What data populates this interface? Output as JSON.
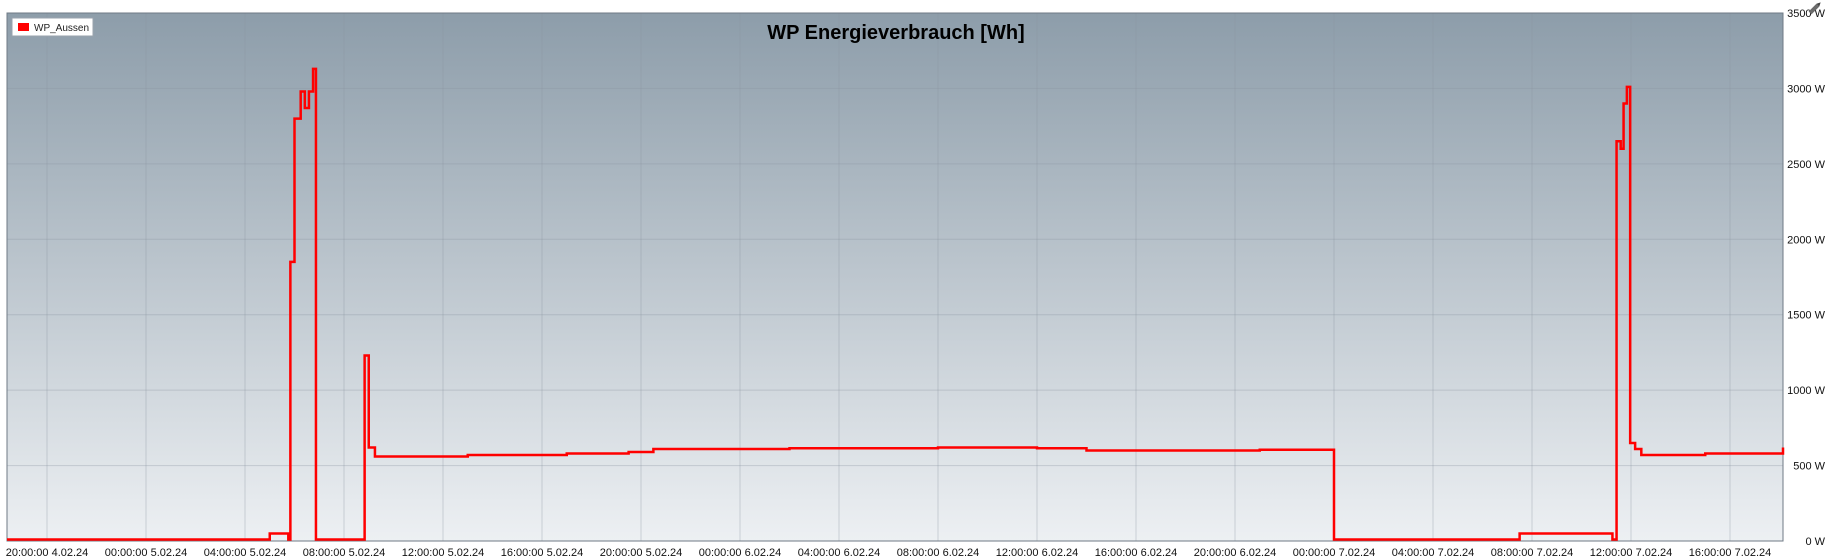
{
  "colors": {
    "series": "#ff0000",
    "background_top": "#8d9daa",
    "background_bottom": "#edf0f3"
  },
  "chart_data": {
    "type": "line",
    "title": "WP Energieverbrauch [Wh]",
    "xlabel": "",
    "ylabel": "",
    "ylim": [
      0,
      3500
    ],
    "grid": true,
    "legend_position": "top-left",
    "icons": [
      "pencil-icon"
    ],
    "x_ticks": [
      "20:00:00 4.02.24",
      "00:00:00 5.02.24",
      "04:00:00 5.02.24",
      "08:00:00 5.02.24",
      "12:00:00 5.02.24",
      "16:00:00 5.02.24",
      "20:00:00 5.02.24",
      "00:00:00 6.02.24",
      "04:00:00 6.02.24",
      "08:00:00 6.02.24",
      "12:00:00 6.02.24",
      "16:00:00 6.02.24",
      "20:00:00 6.02.24",
      "00:00:00 7.02.24",
      "04:00:00 7.02.24",
      "08:00:00 7.02.24",
      "12:00:00 7.02.24",
      "16:00:00 7.02.24"
    ],
    "y_ticks": [
      "0 W",
      "500 W",
      "1000 W",
      "1500 W",
      "2000 W",
      "2500 W",
      "3000 W",
      "3500 W"
    ],
    "y_tick_values": [
      0,
      500,
      1000,
      1500,
      2000,
      2500,
      3000,
      3500
    ],
    "series": [
      {
        "name": "WP_Aussen",
        "color": "#ff0000",
        "step": true,
        "points": [
          [
            "04.02.24 18:30",
            10
          ],
          [
            "05.02.24 05:00",
            50
          ],
          [
            "05.02.24 05:45",
            10
          ],
          [
            "05.02.24 05:50",
            1850
          ],
          [
            "05.02.24 06:00",
            2800
          ],
          [
            "05.02.24 06:15",
            2980
          ],
          [
            "05.02.24 06:25",
            2870
          ],
          [
            "05.02.24 06:35",
            2980
          ],
          [
            "05.02.24 06:45",
            3130
          ],
          [
            "05.02.24 06:52",
            10
          ],
          [
            "05.02.24 08:50",
            1230
          ],
          [
            "05.02.24 09:00",
            620
          ],
          [
            "05.02.24 09:15",
            560
          ],
          [
            "05.02.24 13:00",
            570
          ],
          [
            "05.02.24 17:00",
            580
          ],
          [
            "05.02.24 19:30",
            590
          ],
          [
            "05.02.24 20:30",
            610
          ],
          [
            "06.02.24 02:00",
            615
          ],
          [
            "06.02.24 08:00",
            620
          ],
          [
            "06.02.24 12:00",
            615
          ],
          [
            "06.02.24 14:00",
            600
          ],
          [
            "06.02.24 21:00",
            605
          ],
          [
            "07.02.24 00:00",
            10
          ],
          [
            "07.02.24 07:30",
            50
          ],
          [
            "07.02.24 11:15",
            10
          ],
          [
            "07.02.24 11:25",
            2650
          ],
          [
            "07.02.24 11:35",
            2600
          ],
          [
            "07.02.24 11:42",
            2900
          ],
          [
            "07.02.24 11:50",
            3010
          ],
          [
            "07.02.24 11:58",
            650
          ],
          [
            "07.02.24 12:10",
            610
          ],
          [
            "07.02.24 12:25",
            570
          ],
          [
            "07.02.24 15:00",
            580
          ],
          [
            "07.02.24 18:30",
            620
          ],
          [
            "07.02.24 19:15",
            620
          ]
        ]
      }
    ]
  }
}
